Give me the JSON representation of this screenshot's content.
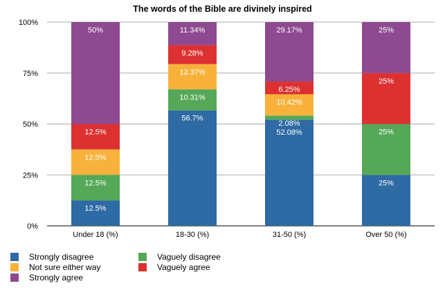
{
  "chart_data": {
    "type": "bar",
    "stacked": true,
    "title": "The words of the Bible are divinely inspired",
    "categories": [
      "Under 18 (%)",
      "18-30 (%)",
      "31-50 (%)",
      "Over 50 (%)"
    ],
    "ylim": [
      0,
      100
    ],
    "yticks": [
      "0%",
      "25%",
      "50%",
      "75%",
      "100%"
    ],
    "grid": true,
    "legend_position": "bottom-left",
    "series": [
      {
        "name": "Strongly disagree",
        "color": "#2e6aa3",
        "values": [
          12.5,
          56.7,
          52.08,
          25
        ],
        "labels": [
          "12.5%",
          "56.7%",
          "52.08%",
          "25%"
        ]
      },
      {
        "name": "Vaguely disagree",
        "color": "#55a857",
        "values": [
          12.5,
          10.31,
          2.08,
          25
        ],
        "labels": [
          "12.5%",
          "10.31%",
          "2.08%",
          "25%"
        ]
      },
      {
        "name": "Not sure either way",
        "color": "#f8b23b",
        "values": [
          12.5,
          12.37,
          10.42,
          0
        ],
        "labels": [
          "12.5%",
          "12.37%",
          "10.42%",
          ""
        ]
      },
      {
        "name": "Vaguely agree",
        "color": "#dd3131",
        "values": [
          12.5,
          9.28,
          6.25,
          25
        ],
        "labels": [
          "12.5%",
          "9.28%",
          "6.25%",
          "25%"
        ]
      },
      {
        "name": "Strongly agree",
        "color": "#8d4a90",
        "values": [
          50,
          11.34,
          29.17,
          25
        ],
        "labels": [
          "50%",
          "11.34%",
          "29.17%",
          "25%"
        ]
      }
    ]
  },
  "legend_order": [
    0,
    1,
    2,
    3,
    4
  ]
}
